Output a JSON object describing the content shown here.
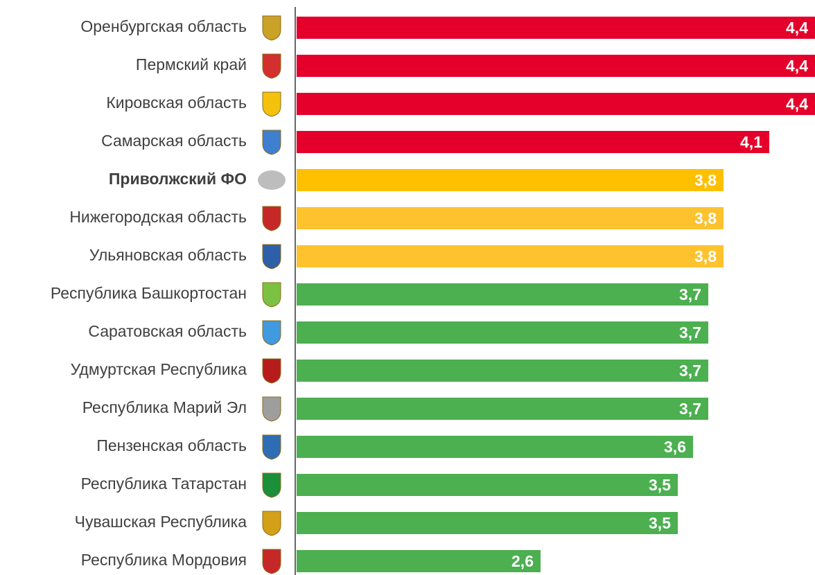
{
  "chart_data": {
    "type": "barh",
    "categories": [
      "Оренбургская область",
      "Пермский край",
      "Кировская область",
      "Самарская область",
      "Приволжский ФО",
      "Нижегородская область",
      "Ульяновская область",
      "Республика Башкортостан",
      "Саратовская область",
      "Удмуртская Республика",
      "Республика Марий Эл",
      "Пензенская область",
      "Республика Татарстан",
      "Чувашская Республика",
      "Республика Мордовия"
    ],
    "values": [
      4.4,
      4.4,
      4.4,
      4.1,
      3.8,
      3.8,
      3.8,
      3.7,
      3.7,
      3.7,
      3.7,
      3.6,
      3.5,
      3.5,
      2.6
    ],
    "value_labels": [
      "4,4",
      "4,4",
      "4,4",
      "4,1",
      "3,8",
      "3,8",
      "3,8",
      "3,7",
      "3,7",
      "3,7",
      "3,7",
      "3,6",
      "3,5",
      "3,5",
      "2,6"
    ],
    "colors": [
      "#e4002b",
      "#e4002b",
      "#e4002b",
      "#e4002b",
      "#ffc000",
      "#fdc22e",
      "#fdc22e",
      "#4caf50",
      "#4caf50",
      "#4caf50",
      "#4caf50",
      "#4caf50",
      "#4caf50",
      "#4caf50",
      "#4caf50"
    ],
    "xlim": [
      1,
      4.4
    ]
  }
}
